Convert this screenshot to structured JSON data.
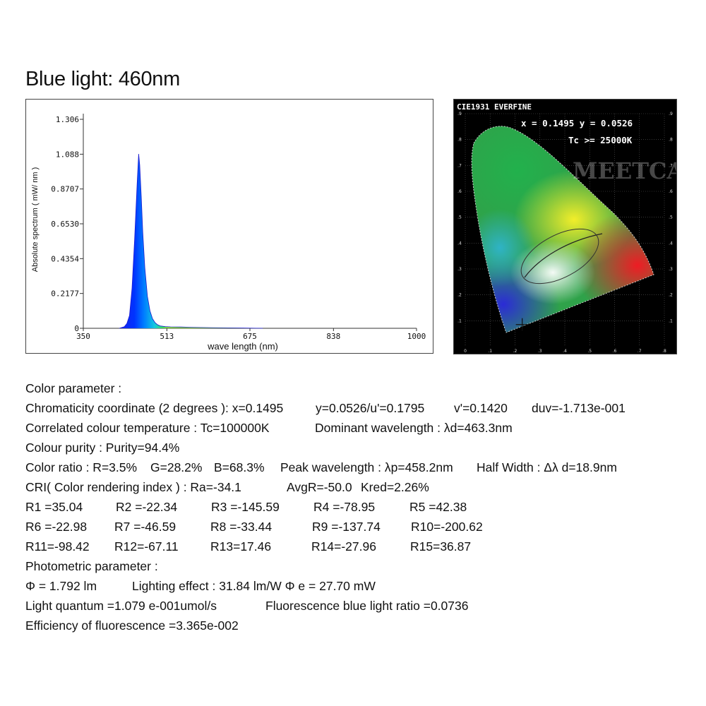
{
  "title": "Blue light: 460nm",
  "chart_data": [
    {
      "type": "area",
      "title": "",
      "xlabel": "wave length (nm)",
      "ylabel": "Absolute spectrum ( mW/ nm )",
      "xlim": [
        350,
        1000
      ],
      "ylim": [
        0,
        1.306
      ],
      "x_ticks": [
        "350",
        "513",
        "675",
        "838",
        "1000"
      ],
      "y_ticks": [
        "0",
        "0.2177",
        "0.4354",
        "0.6530",
        "0.8707",
        "1.088",
        "1.306"
      ],
      "x_tick_values": [
        350,
        513,
        675,
        838,
        1000
      ],
      "y_tick_values": [
        0,
        0.2177,
        0.4354,
        0.653,
        0.8707,
        1.088,
        1.306
      ],
      "grid": false,
      "series": [
        {
          "x": [
            420,
            430,
            435,
            440,
            445,
            450,
            455,
            458,
            460,
            463,
            466,
            470,
            475,
            480,
            485,
            490,
            495,
            500,
            510,
            520,
            540,
            560,
            600,
            650,
            700
          ],
          "values": [
            0,
            0.01,
            0.03,
            0.08,
            0.25,
            0.55,
            0.9,
            1.09,
            1.02,
            0.82,
            0.6,
            0.38,
            0.2,
            0.11,
            0.06,
            0.035,
            0.022,
            0.015,
            0.01,
            0.009,
            0.008,
            0.006,
            0.004,
            0.002,
            0
          ]
        }
      ]
    },
    {
      "type": "scatter",
      "title": "CIE1931 EVERFINE",
      "readout": "x = 0.1495  y = 0.0526",
      "tc": "Tc >= 25000K",
      "watermark": "MEETCARE",
      "xlim": [
        0,
        0.8
      ],
      "ylim": [
        0,
        0.9
      ],
      "x_ticks": [
        "0",
        ".1",
        ".2",
        ".3",
        ".4",
        ".5",
        ".6",
        ".7",
        ".8"
      ],
      "y_ticks": [
        ".1",
        ".2",
        ".3",
        ".4",
        ".5",
        ".6",
        ".7",
        ".8",
        ".9"
      ],
      "series": [
        {
          "x": [
            0.1495
          ],
          "values": [
            0.0526
          ]
        }
      ]
    }
  ],
  "params": {
    "color_parameter": "Color parameter :",
    "chroma_label": "Chromaticity coordinate (2 degrees ): x=0.1495",
    "chroma_y": "y=0.0526/u'=0.1795",
    "chroma_v": "v'=0.1420",
    "chroma_duv": "duv=-1.713e-001",
    "cct": "Correlated colour temperature : Tc=100000K",
    "dominant": "Dominant wavelength : λd=463.3nm",
    "purity": "Colour purity : Purity=94.4%",
    "ratio_r": "Color ratio : R=3.5%",
    "ratio_g": "G=28.2%",
    "ratio_b": "B=68.3%",
    "peak": "Peak wavelength : λp=458.2nm",
    "half": "Half Width : Δλ d=18.9nm",
    "cri": "CRI( Color rendering index ) : Ra=-34.1",
    "avgr": "AvgR=-50.0",
    "kred": "Kred=2.26%",
    "r_values": [
      [
        "R1 =35.04",
        "R2 =-22.34",
        "R3 =-145.59",
        "R4 =-78.95",
        "R5 =42.38"
      ],
      [
        "R6 =-22.98",
        "R7 =-46.59",
        "R8 =-33.44",
        "R9 =-137.74",
        "R10=-200.62"
      ],
      [
        "R11=-98.42",
        "R12=-67.11",
        "R13=17.46",
        "R14=-27.96",
        "R15=36.87"
      ]
    ],
    "photometric": "Photometric parameter :",
    "flux": "Φ = 1.792 lm",
    "effect": "Lighting effect : 31.84 lm/W Φ e = 27.70 mW",
    "quantum": "Light quantum =1.079 e-001umol/s",
    "blue_ratio": "Fluorescence blue light ratio =0.0736",
    "efficiency": "Efficiency of fluorescence =3.365e-002"
  }
}
